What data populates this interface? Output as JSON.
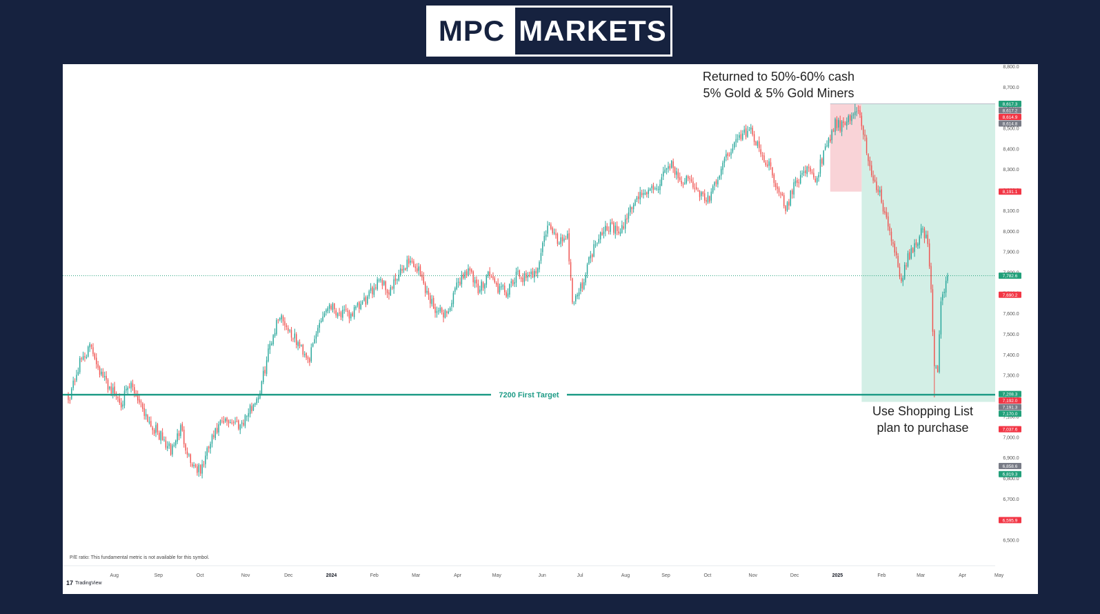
{
  "logo": {
    "left_text": "MPC",
    "right_text": "MARKETS"
  },
  "chart_data": {
    "type": "candlestick",
    "ylim": [
      6475,
      8810
    ],
    "y_ticks": [
      6500,
      6600,
      6700,
      6800,
      6900,
      7000,
      7100,
      7200,
      7300,
      7400,
      7500,
      7600,
      7700,
      7800,
      7900,
      8000,
      8100,
      8200,
      8300,
      8400,
      8500,
      8600,
      8700,
      8800
    ],
    "x_ticks": [
      "Aug",
      "Sep",
      "Oct",
      "Nov",
      "Dec",
      "2024",
      "Feb",
      "Mar",
      "Apr",
      "May",
      "Jun",
      "Jul",
      "Aug",
      "Sep",
      "Oct",
      "Nov",
      "Dec",
      "2025",
      "Feb",
      "Mar",
      "Apr",
      "May"
    ],
    "price_anchors": [
      [
        0,
        7180
      ],
      [
        3,
        7260
      ],
      [
        8,
        7380
      ],
      [
        14,
        7440
      ],
      [
        20,
        7300
      ],
      [
        26,
        7230
      ],
      [
        32,
        7170
      ],
      [
        38,
        7250
      ],
      [
        44,
        7160
      ],
      [
        50,
        7060
      ],
      [
        56,
        7000
      ],
      [
        62,
        6930
      ],
      [
        68,
        7040
      ],
      [
        74,
        6880
      ],
      [
        80,
        6830
      ],
      [
        86,
        6970
      ],
      [
        92,
        7060
      ],
      [
        98,
        7080
      ],
      [
        104,
        7060
      ],
      [
        110,
        7130
      ],
      [
        116,
        7220
      ],
      [
        122,
        7450
      ],
      [
        128,
        7600
      ],
      [
        134,
        7510
      ],
      [
        140,
        7440
      ],
      [
        146,
        7380
      ],
      [
        152,
        7560
      ],
      [
        158,
        7650
      ],
      [
        164,
        7600
      ],
      [
        170,
        7590
      ],
      [
        176,
        7630
      ],
      [
        182,
        7680
      ],
      [
        188,
        7780
      ],
      [
        194,
        7700
      ],
      [
        200,
        7780
      ],
      [
        206,
        7860
      ],
      [
        212,
        7810
      ],
      [
        218,
        7680
      ],
      [
        224,
        7600
      ],
      [
        230,
        7610
      ],
      [
        236,
        7750
      ],
      [
        242,
        7820
      ],
      [
        248,
        7700
      ],
      [
        254,
        7800
      ],
      [
        260,
        7720
      ],
      [
        266,
        7700
      ],
      [
        272,
        7790
      ],
      [
        278,
        7760
      ],
      [
        284,
        7830
      ],
      [
        290,
        8030
      ],
      [
        296,
        7950
      ],
      [
        302,
        7980
      ],
      [
        305,
        7660
      ],
      [
        310,
        7720
      ],
      [
        316,
        7880
      ],
      [
        322,
        8000
      ],
      [
        328,
        8030
      ],
      [
        334,
        7980
      ],
      [
        340,
        8110
      ],
      [
        346,
        8180
      ],
      [
        352,
        8190
      ],
      [
        358,
        8230
      ],
      [
        364,
        8330
      ],
      [
        370,
        8250
      ],
      [
        376,
        8240
      ],
      [
        382,
        8180
      ],
      [
        388,
        8150
      ],
      [
        394,
        8280
      ],
      [
        400,
        8390
      ],
      [
        406,
        8450
      ],
      [
        412,
        8500
      ],
      [
        418,
        8390
      ],
      [
        424,
        8320
      ],
      [
        430,
        8200
      ],
      [
        434,
        8100
      ],
      [
        440,
        8240
      ],
      [
        446,
        8300
      ],
      [
        452,
        8250
      ],
      [
        458,
        8390
      ],
      [
        464,
        8520
      ],
      [
        470,
        8500
      ],
      [
        476,
        8600
      ],
      [
        480,
        8530
      ],
      [
        485,
        8300
      ],
      [
        490,
        8200
      ],
      [
        495,
        8050
      ],
      [
        500,
        7900
      ],
      [
        504,
        7740
      ],
      [
        508,
        7880
      ],
      [
        512,
        7920
      ],
      [
        516,
        8000
      ],
      [
        520,
        7950
      ],
      [
        522,
        7700
      ],
      [
        524,
        7330
      ],
      [
        526,
        7340
      ],
      [
        528,
        7640
      ],
      [
        530,
        7720
      ],
      [
        532,
        7782.6
      ]
    ],
    "markers": [
      {
        "label": "8,617.3",
        "value": 8617.3,
        "color": "#22a07a"
      },
      {
        "label": "8,617.2",
        "value": 8617.2,
        "color": "#787b86"
      },
      {
        "label": "8,614.9",
        "value": 8614.9,
        "color": "#f23645"
      },
      {
        "label": "8,614.8",
        "value": 8614.8,
        "color": "#787b86"
      },
      {
        "label": "8,191.1",
        "value": 8191.1,
        "color": "#f23645"
      },
      {
        "label": "7,782.6",
        "value": 7782.6,
        "color": "#22a07a"
      },
      {
        "label": "7,690.2",
        "value": 7690.2,
        "color": "#f23645"
      },
      {
        "label": "7,208.3",
        "value": 7208.3,
        "color": "#22a07a"
      },
      {
        "label": "7,192.0",
        "value": 7192.0,
        "color": "#f23645"
      },
      {
        "label": "7,191.3",
        "value": 7191.3,
        "color": "#787b86"
      },
      {
        "label": "7,170.0",
        "value": 7170.0,
        "color": "#22a07a"
      },
      {
        "label": "7,037.6",
        "value": 7037.6,
        "color": "#f23645"
      },
      {
        "label": "6,858.6",
        "value": 6858.6,
        "color": "#787b86"
      },
      {
        "label": "6,819.3",
        "value": 6819.3,
        "color": "#22a07a"
      },
      {
        "label": "6,595.9",
        "value": 6595.9,
        "color": "#f23645"
      }
    ],
    "target_line": {
      "value": 7205,
      "label": "7200 First Target",
      "color": "#1e9b86"
    },
    "current_price": 7782.6,
    "annotation_top_1": "Returned to 50%-60% cash",
    "annotation_top_2": "5% Gold & 5% Gold Miners",
    "annotation_bottom_1": "Use Shopping List",
    "annotation_bottom_2": "plan to purchase",
    "footnote": "P/E ratio: This fundamental metric is not available for this symbol.",
    "brand": "TradingView",
    "colors": {
      "up": "#26a69a",
      "down": "#ef5350",
      "risk_zone": "#f9d3d7",
      "reward_zone": "#d3efe6"
    }
  }
}
